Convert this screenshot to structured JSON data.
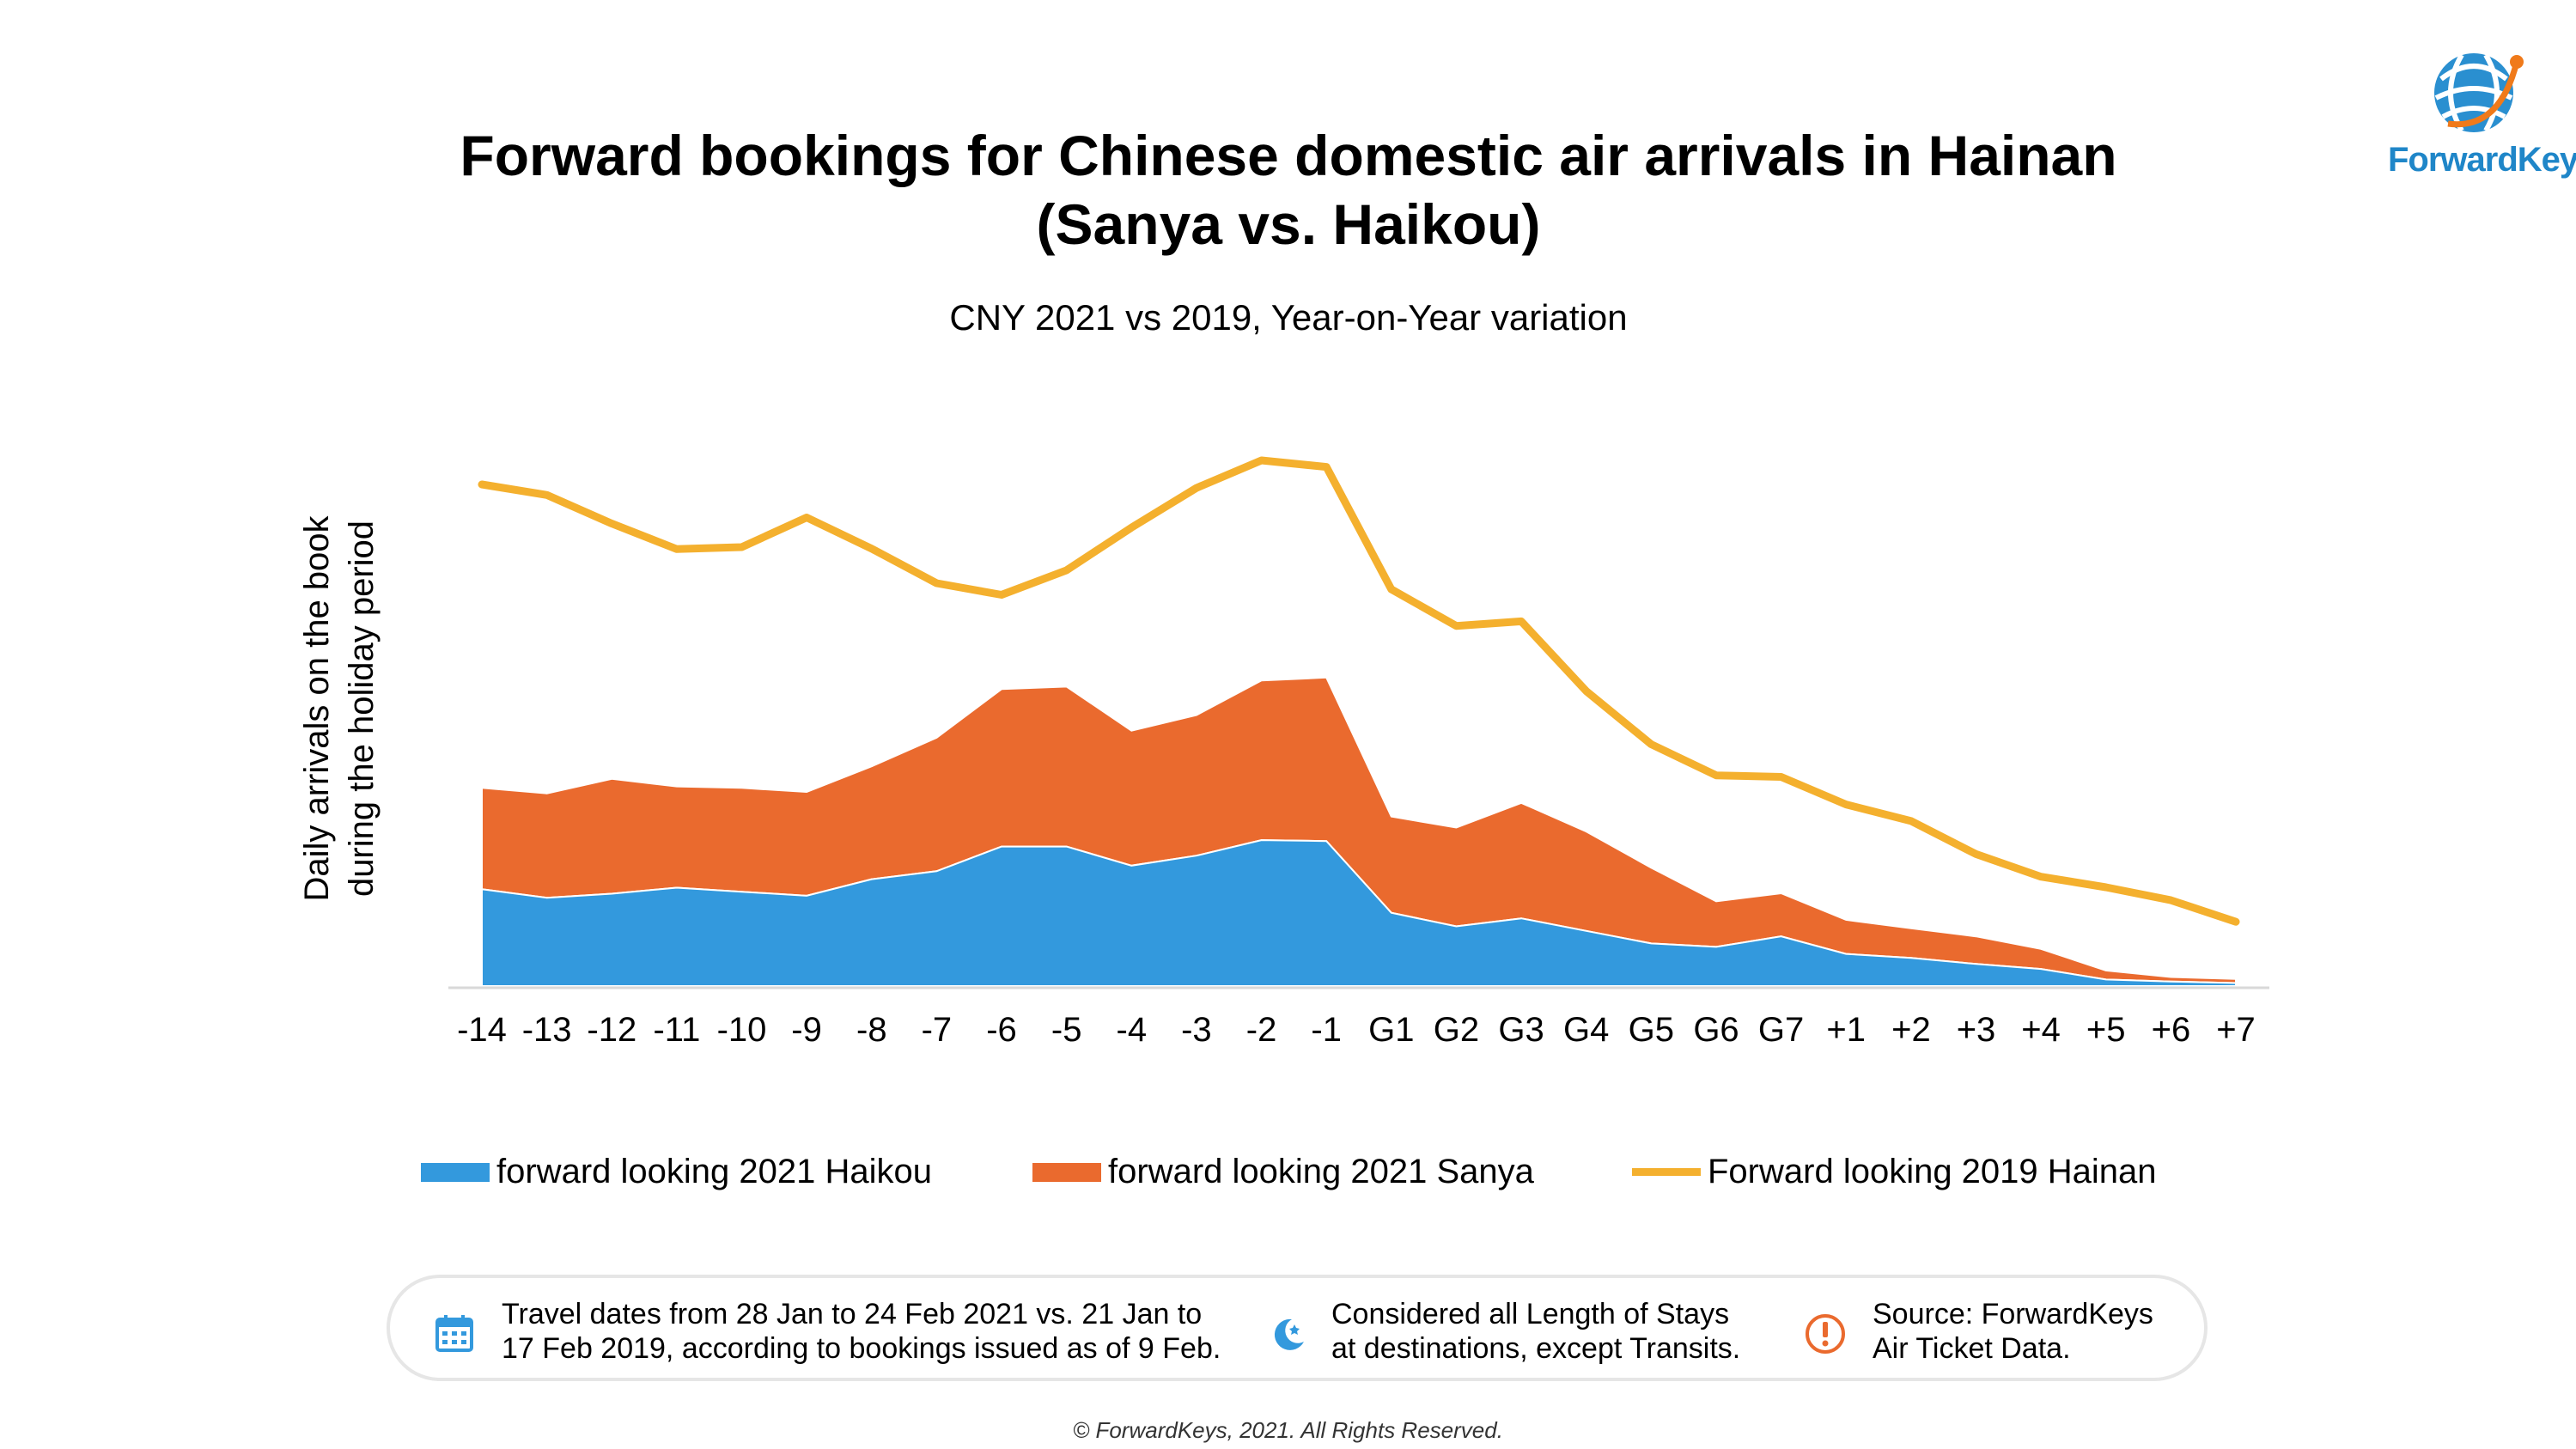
{
  "header": {
    "title_line1": "Forward bookings for Chinese domestic air arrivals in Hainan",
    "title_line2": "(Sanya vs. Haikou)",
    "subtitle": "CNY 2021 vs 2019, Year-on-Year variation"
  },
  "logo": {
    "text": "ForwardKeys",
    "icon": "globe-icon",
    "colors": {
      "blue": "#1f86c8",
      "orange": "#f07a1a"
    }
  },
  "chart_data": {
    "type": "area",
    "title": "Forward bookings for Chinese domestic air arrivals in Hainan (Sanya vs. Haikou)",
    "subtitle": "CNY 2021 vs 2019, Year-on-Year variation",
    "ylabel_line1": "Daily arrivals on the book",
    "ylabel_line2": "during the holiday period",
    "xlabel": "",
    "grid": false,
    "legend_position": "bottom",
    "categories": [
      "-14",
      "-13",
      "-12",
      "-11",
      "-10",
      "-9",
      "-8",
      "-7",
      "-6",
      "-5",
      "-4",
      "-3",
      "-2",
      "-1",
      "G1",
      "G2",
      "G3",
      "G4",
      "G5",
      "G6",
      "G7",
      "+1",
      "+2",
      "+3",
      "+4",
      "+5",
      "+6",
      "+7"
    ],
    "ylim": [
      0,
      100
    ],
    "series": [
      {
        "name": "forward looking 2021 Haikou",
        "kind": "stacked-area",
        "color": "#3399dd",
        "values": [
          19.3,
          17.6,
          18.4,
          19.6,
          18.8,
          18.0,
          21.3,
          22.9,
          27.8,
          27.8,
          24.0,
          26.0,
          29.1,
          28.9,
          14.6,
          11.9,
          13.5,
          11.0,
          8.5,
          7.8,
          9.9,
          6.4,
          5.6,
          4.4,
          3.4,
          1.3,
          0.9,
          0.6
        ]
      },
      {
        "name": "forward looking 2021 Sanya",
        "kind": "stacked-area",
        "color": "#ea6a2e",
        "values": [
          20.2,
          20.8,
          22.9,
          20.2,
          20.7,
          20.7,
          22.5,
          26.6,
          31.4,
          31.9,
          26.9,
          28.0,
          31.8,
          32.6,
          19.2,
          19.7,
          23.0,
          19.8,
          15.1,
          9.1,
          8.6,
          6.8,
          5.9,
          5.5,
          4.0,
          1.8,
          0.9,
          0.8
        ]
      },
      {
        "name": "Forward looking 2019 Hainan",
        "kind": "line",
        "color": "#f4b02e",
        "values": [
          100.0,
          97.9,
          92.2,
          87.1,
          87.5,
          93.4,
          87.2,
          80.3,
          78.0,
          82.9,
          91.4,
          99.3,
          104.8,
          103.5,
          79.1,
          71.8,
          72.7,
          58.8,
          48.2,
          42.0,
          41.7,
          36.2,
          32.9,
          26.3,
          21.8,
          19.7,
          17.1,
          12.8
        ]
      }
    ]
  },
  "info": {
    "item1_line1": "Travel dates from 28 Jan to 24 Feb 2021 vs. 21 Jan to",
    "item1_line2": "17 Feb 2019, according to bookings issued as of 9 Feb.",
    "item1_icon": "calendar-icon",
    "item2_line1": "Considered all Length of Stays",
    "item2_line2": "at destinations, except Transits.",
    "item2_icon": "moon-icon",
    "item3_line1": "Source: ForwardKeys",
    "item3_line2": "Air Ticket Data.",
    "item3_icon": "alert-icon",
    "icon_color_blue": "#3399dd",
    "icon_color_orange": "#ea6a2e"
  },
  "footer": {
    "copyright": "© ForwardKeys, 2021. All Rights Reserved."
  }
}
